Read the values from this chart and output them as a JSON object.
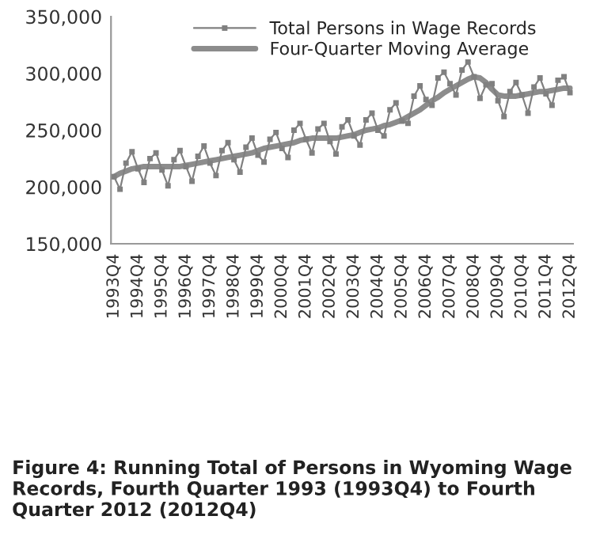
{
  "chart_data": {
    "type": "line",
    "categories": [
      "1993Q4",
      null,
      null,
      null,
      "1994Q4",
      null,
      null,
      null,
      "1995Q4",
      null,
      null,
      null,
      "1996Q4",
      null,
      null,
      null,
      "1997Q4",
      null,
      null,
      null,
      "1998Q4",
      null,
      null,
      null,
      "1999Q4",
      null,
      null,
      null,
      "2000Q4",
      null,
      null,
      null,
      "2001Q4",
      null,
      null,
      null,
      "2002Q4",
      null,
      null,
      null,
      "2003Q4",
      null,
      null,
      null,
      "2004Q4",
      null,
      null,
      null,
      "2005Q4",
      null,
      null,
      null,
      "2006Q4",
      null,
      null,
      null,
      "2007Q4",
      null,
      null,
      null,
      "2008Q4",
      null,
      null,
      null,
      "2009Q4",
      null,
      null,
      null,
      "2010Q4",
      null,
      null,
      null,
      "2011Q4",
      null,
      null,
      null,
      "2012Q4"
    ],
    "series": [
      {
        "name": "Total Persons in Wage Records",
        "color": "#808080",
        "marker": "square",
        "line_style": "solid",
        "values": [
          209000,
          198000,
          221000,
          231000,
          216000,
          204000,
          225000,
          230000,
          215000,
          201000,
          224000,
          232000,
          218000,
          205000,
          227000,
          236000,
          221000,
          210000,
          232000,
          239000,
          224000,
          213000,
          235000,
          243000,
          228000,
          222000,
          242000,
          248000,
          234000,
          226000,
          250000,
          256000,
          242000,
          230000,
          251000,
          256000,
          240000,
          229000,
          253000,
          259000,
          245000,
          237000,
          259000,
          265000,
          250000,
          245000,
          268000,
          274000,
          258000,
          256000,
          280000,
          289000,
          277000,
          272000,
          296000,
          301000,
          291000,
          281000,
          303000,
          310000,
          297000,
          278000,
          290000,
          291000,
          276000,
          262000,
          284000,
          292000,
          281000,
          265000,
          288000,
          296000,
          282000,
          272000,
          294000,
          297000,
          283000
        ]
      },
      {
        "name": "Four-Quarter Moving Average",
        "color": "#8c8c8c",
        "marker": "none",
        "line_style": "solid",
        "values": [
          209000,
          212000,
          214000,
          216000,
          217000,
          218000,
          218000,
          218000,
          218000,
          218000,
          218000,
          218000,
          219000,
          220000,
          221000,
          222000,
          223000,
          224000,
          225000,
          226000,
          227000,
          228000,
          229000,
          230000,
          232000,
          234000,
          235000,
          236000,
          237000,
          238000,
          239000,
          241000,
          242000,
          243000,
          243000,
          243000,
          243000,
          243000,
          244000,
          245000,
          246000,
          248000,
          250000,
          251000,
          252000,
          254000,
          255000,
          257000,
          259000,
          262000,
          265000,
          268000,
          272000,
          276000,
          279000,
          283000,
          286000,
          289000,
          292000,
          295000,
          297000,
          296000,
          292000,
          286000,
          281000,
          280000,
          280000,
          280000,
          281000,
          282000,
          283000,
          284000,
          284000,
          285000,
          286000,
          287000,
          287000
        ]
      }
    ],
    "ylim": [
      150000,
      350000
    ],
    "yticks": [
      {
        "value": 150000,
        "label": "150,000"
      },
      {
        "value": 200000,
        "label": "200,000"
      },
      {
        "value": 250000,
        "label": "250,000"
      },
      {
        "value": 300000,
        "label": "300,000"
      },
      {
        "value": 350000,
        "label": "350,000"
      }
    ],
    "grid": false,
    "legend": "top",
    "annotations": [
      "Figure 4: Running Total of Persons in Wyoming Wage Records, Fourth Quarter 1993 (1993Q4) to Fourth Quarter 2012 (2012Q4)"
    ]
  }
}
